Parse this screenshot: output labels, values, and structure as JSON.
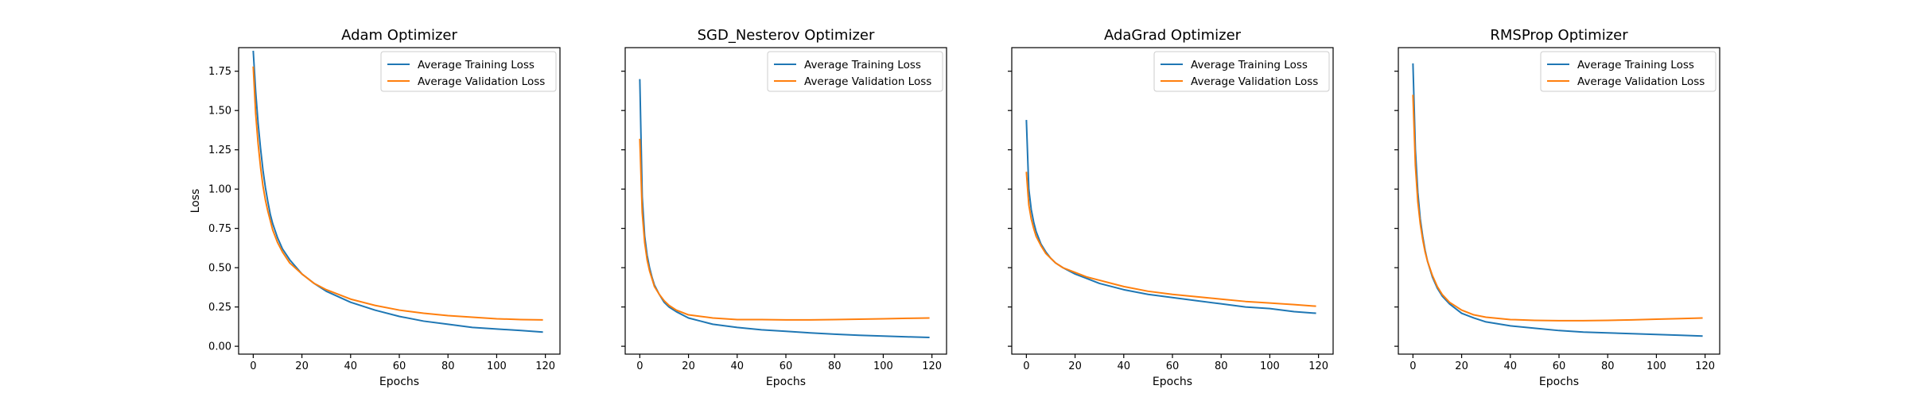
{
  "colors": {
    "training": "#1f77b4",
    "validation": "#ff7f0e",
    "axis": "#000000",
    "background": "#ffffff"
  },
  "chart_data": [
    {
      "type": "line",
      "title": "Adam Optimizer",
      "xlabel": "Epochs",
      "ylabel": "Loss",
      "xlim": [
        -6,
        126
      ],
      "ylim": [
        -0.05,
        1.9
      ],
      "xticks": [
        0,
        20,
        40,
        60,
        80,
        100,
        120
      ],
      "yticks": [
        0.0,
        0.25,
        0.5,
        0.75,
        1.0,
        1.25,
        1.5,
        1.75
      ],
      "ytick_labels": [
        "0.00",
        "0.25",
        "0.50",
        "0.75",
        "1.00",
        "1.25",
        "1.50",
        "1.75"
      ],
      "show_ytick_labels": true,
      "legend_position": "upper right",
      "grid": false,
      "series": [
        {
          "name": "Average Training Loss",
          "color": "#1f77b4",
          "x": [
            0,
            1,
            2,
            3,
            4,
            5,
            6,
            7,
            8,
            10,
            12,
            15,
            20,
            25,
            30,
            40,
            50,
            60,
            70,
            80,
            90,
            100,
            110,
            119
          ],
          "y": [
            1.88,
            1.62,
            1.42,
            1.26,
            1.12,
            1.01,
            0.92,
            0.84,
            0.78,
            0.69,
            0.62,
            0.55,
            0.46,
            0.4,
            0.35,
            0.28,
            0.23,
            0.19,
            0.16,
            0.14,
            0.12,
            0.11,
            0.1,
            0.09
          ]
        },
        {
          "name": "Average Validation Loss",
          "color": "#ff7f0e",
          "x": [
            0,
            1,
            2,
            3,
            4,
            5,
            6,
            7,
            8,
            10,
            12,
            15,
            20,
            25,
            30,
            40,
            50,
            60,
            70,
            80,
            90,
            100,
            110,
            119
          ],
          "y": [
            1.78,
            1.48,
            1.29,
            1.14,
            1.02,
            0.93,
            0.86,
            0.8,
            0.74,
            0.66,
            0.6,
            0.53,
            0.46,
            0.4,
            0.36,
            0.3,
            0.26,
            0.23,
            0.21,
            0.195,
            0.185,
            0.175,
            0.17,
            0.168
          ]
        }
      ]
    },
    {
      "type": "line",
      "title": "SGD_Nesterov Optimizer",
      "xlabel": "Epochs",
      "xlim": [
        -6,
        126
      ],
      "ylim": [
        -0.05,
        1.9
      ],
      "xticks": [
        0,
        20,
        40,
        60,
        80,
        100,
        120
      ],
      "yticks": [
        0.0,
        0.25,
        0.5,
        0.75,
        1.0,
        1.25,
        1.5,
        1.75
      ],
      "show_ytick_labels": false,
      "legend_position": "upper right",
      "grid": false,
      "series": [
        {
          "name": "Average Training Loss",
          "color": "#1f77b4",
          "x": [
            0,
            1,
            2,
            3,
            4,
            5,
            6,
            8,
            10,
            12,
            15,
            20,
            25,
            30,
            40,
            50,
            60,
            70,
            80,
            90,
            100,
            110,
            119
          ],
          "y": [
            1.7,
            0.95,
            0.7,
            0.58,
            0.5,
            0.44,
            0.39,
            0.33,
            0.28,
            0.25,
            0.22,
            0.18,
            0.16,
            0.14,
            0.12,
            0.105,
            0.095,
            0.085,
            0.077,
            0.07,
            0.065,
            0.06,
            0.056
          ]
        },
        {
          "name": "Average Validation Loss",
          "color": "#ff7f0e",
          "x": [
            0,
            1,
            2,
            3,
            4,
            5,
            6,
            8,
            10,
            12,
            15,
            20,
            25,
            30,
            40,
            50,
            60,
            70,
            80,
            90,
            100,
            110,
            119
          ],
          "y": [
            1.32,
            0.85,
            0.66,
            0.55,
            0.48,
            0.43,
            0.38,
            0.33,
            0.29,
            0.26,
            0.23,
            0.2,
            0.19,
            0.18,
            0.17,
            0.17,
            0.168,
            0.168,
            0.17,
            0.172,
            0.175,
            0.178,
            0.18
          ]
        }
      ]
    },
    {
      "type": "line",
      "title": "AdaGrad Optimizer",
      "xlabel": "Epochs",
      "xlim": [
        -6,
        126
      ],
      "ylim": [
        -0.05,
        1.9
      ],
      "xticks": [
        0,
        20,
        40,
        60,
        80,
        100,
        120
      ],
      "yticks": [
        0.0,
        0.25,
        0.5,
        0.75,
        1.0,
        1.25,
        1.5,
        1.75
      ],
      "show_ytick_labels": false,
      "legend_position": "upper right",
      "grid": false,
      "series": [
        {
          "name": "Average Training Loss",
          "color": "#1f77b4",
          "x": [
            0,
            1,
            2,
            3,
            4,
            5,
            6,
            8,
            10,
            12,
            15,
            20,
            25,
            30,
            40,
            50,
            60,
            70,
            80,
            90,
            100,
            110,
            119
          ],
          "y": [
            1.44,
            1.0,
            0.87,
            0.79,
            0.73,
            0.69,
            0.65,
            0.6,
            0.56,
            0.53,
            0.5,
            0.46,
            0.43,
            0.4,
            0.36,
            0.33,
            0.31,
            0.29,
            0.27,
            0.25,
            0.24,
            0.22,
            0.21
          ]
        },
        {
          "name": "Average Validation Loss",
          "color": "#ff7f0e",
          "x": [
            0,
            1,
            2,
            3,
            4,
            5,
            6,
            8,
            10,
            12,
            15,
            20,
            25,
            30,
            40,
            50,
            60,
            70,
            80,
            90,
            100,
            110,
            119
          ],
          "y": [
            1.11,
            0.9,
            0.81,
            0.75,
            0.7,
            0.67,
            0.64,
            0.59,
            0.56,
            0.53,
            0.5,
            0.47,
            0.44,
            0.42,
            0.38,
            0.35,
            0.33,
            0.315,
            0.3,
            0.285,
            0.275,
            0.265,
            0.255
          ]
        }
      ]
    },
    {
      "type": "line",
      "title": "RMSProp Optimizer",
      "xlabel": "Epochs",
      "xlim": [
        -6,
        126
      ],
      "ylim": [
        -0.05,
        1.9
      ],
      "xticks": [
        0,
        20,
        40,
        60,
        80,
        100,
        120
      ],
      "yticks": [
        0.0,
        0.25,
        0.5,
        0.75,
        1.0,
        1.25,
        1.5,
        1.75
      ],
      "show_ytick_labels": false,
      "legend_position": "upper right",
      "grid": false,
      "series": [
        {
          "name": "Average Training Loss",
          "color": "#1f77b4",
          "x": [
            0,
            1,
            2,
            3,
            4,
            5,
            6,
            8,
            10,
            12,
            15,
            20,
            25,
            30,
            40,
            50,
            60,
            70,
            80,
            90,
            100,
            110,
            119
          ],
          "y": [
            1.8,
            1.25,
            0.98,
            0.81,
            0.7,
            0.61,
            0.54,
            0.44,
            0.37,
            0.32,
            0.27,
            0.21,
            0.18,
            0.155,
            0.13,
            0.115,
            0.1,
            0.09,
            0.085,
            0.08,
            0.075,
            0.07,
            0.065
          ]
        },
        {
          "name": "Average Validation Loss",
          "color": "#ff7f0e",
          "x": [
            0,
            1,
            2,
            3,
            4,
            5,
            6,
            8,
            10,
            12,
            15,
            20,
            25,
            30,
            40,
            50,
            60,
            70,
            80,
            90,
            100,
            110,
            119
          ],
          "y": [
            1.6,
            1.15,
            0.92,
            0.78,
            0.68,
            0.6,
            0.54,
            0.45,
            0.38,
            0.33,
            0.28,
            0.23,
            0.2,
            0.185,
            0.17,
            0.165,
            0.163,
            0.163,
            0.165,
            0.168,
            0.172,
            0.176,
            0.18
          ]
        }
      ]
    }
  ]
}
